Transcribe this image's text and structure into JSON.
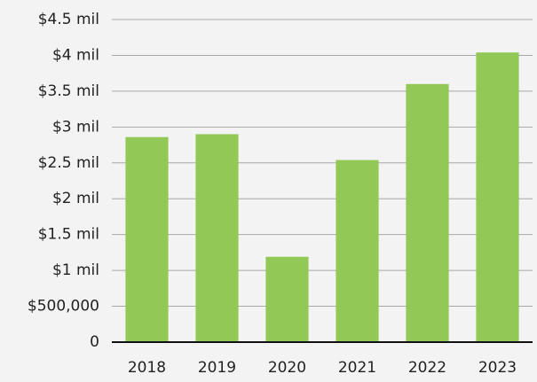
{
  "chart_data": {
    "type": "bar",
    "categories": [
      "2018",
      "2019",
      "2020",
      "2021",
      "2022",
      "2023"
    ],
    "values": [
      2860000,
      2900000,
      1190000,
      2540000,
      3600000,
      4040000
    ],
    "color": "#92c856",
    "ylim": [
      0,
      4500000
    ],
    "yticks": [
      0,
      {
        "value": 500000,
        "label": "$500,000"
      },
      {
        "value": 1000000,
        "label": "$1 mil"
      },
      {
        "value": 1500000,
        "label": "$1.5 mil"
      },
      {
        "value": 2000000,
        "label": "$2 mil"
      },
      {
        "value": 2500000,
        "label": "$2.5 mil"
      },
      {
        "value": 3000000,
        "label": "$3 mil"
      },
      {
        "value": 3500000,
        "label": "$3.5 mil"
      },
      {
        "value": 4000000,
        "label": "$4 mil"
      },
      {
        "value": 4500000,
        "label": "$4.5 mil"
      }
    ],
    "grid": true
  }
}
